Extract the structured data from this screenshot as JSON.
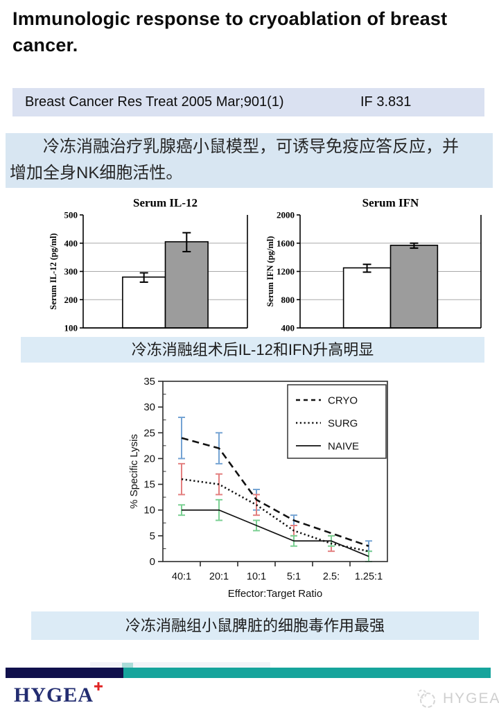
{
  "page": {
    "title": "Immunologic response to cryoablation of breast cancer.",
    "citation": "Breast Cancer Res Treat 2005 Mar;901(1)",
    "impact_factor": "IF 3.831",
    "summary_line1": "冷冻消融治疗乳腺癌小鼠模型，可诱导免疫应答反应，并",
    "summary_line2": "增加全身NK细胞活性。",
    "caption_bars": "冷冻消融组术后IL-12和IFN升高明显",
    "caption_line": "冷冻消融组小鼠脾脏的细胞毒作用最强",
    "brand": "HYGEA",
    "watermark": "HYGEA"
  },
  "colors": {
    "citation_bg": "#dae1f1",
    "summary_bg": "#d8e6f2",
    "caption_bg": "#dcebf6",
    "footer_navy": "#10104c",
    "footer_teal": "#16a49c",
    "brand_navy": "#232d71",
    "brand_red": "#e02424",
    "bar_gray": "#9c9c9c"
  },
  "chart_data": [
    {
      "type": "bar",
      "title": "Serum IL-12",
      "ylabel": "Serum IL-12 (pg/ml)",
      "ylim": [
        100,
        500
      ],
      "yticks": [
        100,
        200,
        300,
        400,
        500
      ],
      "grid": true,
      "bars": [
        {
          "value": 280,
          "err": [
            262,
            295
          ],
          "fill": "#ffffff"
        },
        {
          "value": 405,
          "err": [
            370,
            437
          ],
          "fill": "#9c9c9c"
        }
      ]
    },
    {
      "type": "bar",
      "title": "Serum IFN",
      "ylabel": "Serum IFN (pg/ml)",
      "ylim": [
        400,
        2000
      ],
      "yticks": [
        400,
        800,
        1200,
        1600,
        2000
      ],
      "grid": true,
      "bars": [
        {
          "value": 1250,
          "err": [
            1190,
            1300
          ],
          "fill": "#ffffff"
        },
        {
          "value": 1570,
          "err": [
            1530,
            1600
          ],
          "fill": "#9c9c9c"
        }
      ]
    },
    {
      "type": "line",
      "ylabel": "% Specific Lysis",
      "xlabel": "Effector:Target Ratio",
      "ylim": [
        0,
        35
      ],
      "yticks": [
        0,
        5,
        10,
        15,
        20,
        25,
        30,
        35
      ],
      "grid": false,
      "categories": [
        "40:1",
        "20:1",
        "10:1",
        "5:1",
        "2.5:",
        "1.25:1"
      ],
      "legend_position": "top-right",
      "series": [
        {
          "name": "CRYO",
          "line_style": "dashed",
          "err_color": "#74a3d3",
          "values": [
            24,
            22,
            12,
            8,
            5.5,
            3
          ],
          "errors": [
            [
              20,
              28
            ],
            [
              19,
              25
            ],
            [
              10,
              14
            ],
            [
              7,
              9
            ],
            null,
            [
              2,
              4
            ]
          ]
        },
        {
          "name": "SURG",
          "line_style": "dotted",
          "err_color": "#e37f7f",
          "values": [
            16,
            15,
            11,
            6,
            3.5,
            2
          ],
          "errors": [
            [
              13,
              19
            ],
            [
              13,
              17
            ],
            [
              9,
              13
            ],
            [
              5,
              7
            ],
            [
              2,
              5
            ],
            null
          ]
        },
        {
          "name": "NAIVE",
          "line_style": "solid",
          "err_color": "#7bd093",
          "values": [
            10,
            10,
            7,
            4,
            4,
            1
          ],
          "errors": [
            [
              9,
              11
            ],
            [
              8,
              12
            ],
            [
              6,
              8
            ],
            [
              3,
              5
            ],
            [
              3,
              5
            ],
            [
              0,
              2
            ]
          ]
        }
      ]
    }
  ]
}
